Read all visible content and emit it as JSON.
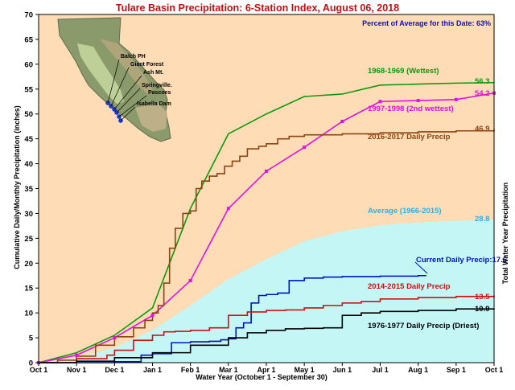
{
  "chart_data": {
    "type": "line",
    "title": "Tulare Basin Precipitation: 6-Station Index, August 06, 2018",
    "subtitle": "Percent of Average for this Date: 63%",
    "xlabel": "Water Year (October 1 - September 30)",
    "ylabel": "Cumulative Daily/Monthly Precipitation (inches)",
    "ylabel_right": "Total Water Year Precipitation",
    "categories": [
      "Oct 1",
      "Nov 1",
      "Dec 1",
      "Jan 1",
      "Feb 1",
      "Mar 1",
      "Apr 1",
      "May 1",
      "Jun 1",
      "Jul 1",
      "Aug 1",
      "Sep 1",
      "Oct 1"
    ],
    "xlim": [
      0,
      12
    ],
    "ylim": [
      0,
      70
    ],
    "yticks": [
      0,
      5,
      10,
      15,
      20,
      25,
      30,
      35,
      40,
      45,
      50,
      55,
      60,
      65,
      70
    ],
    "grid": false,
    "colors": {
      "plot_background": "#FDDCB6",
      "average_fill": "#C4F6F6"
    },
    "map": {
      "stations": [
        "Balch PH",
        "Giant Forest",
        "Ash Mt.",
        "Springville.",
        "Pascoes",
        "Isabella Dam"
      ]
    },
    "series": [
      {
        "name": "Average (1966-2015)",
        "style": "area",
        "color": "#C4F6F6",
        "label_color": "#22B5E8",
        "end_label": "28.8",
        "x": [
          0,
          1,
          2,
          3,
          4,
          5,
          6,
          7,
          8,
          9,
          10,
          11,
          12
        ],
        "values": [
          0,
          0.9,
          3.0,
          6.5,
          11.5,
          16.8,
          20.8,
          24.4,
          26.4,
          27.6,
          28.2,
          28.5,
          28.8
        ]
      },
      {
        "name": "1968-1969 (Wettest)",
        "style": "line",
        "color": "#0B9A0B",
        "label_color": "#0B9A0B",
        "end_label": "56.3",
        "x": [
          0,
          1,
          2,
          3,
          4,
          5,
          6,
          7,
          8,
          9,
          10,
          11,
          12
        ],
        "values": [
          0,
          2.0,
          5.5,
          11.0,
          31.0,
          46.0,
          50.0,
          53.5,
          54.0,
          55.8,
          56.0,
          56.2,
          56.3
        ]
      },
      {
        "name": "1997-1998  (2nd wettest)",
        "style": "line-markers",
        "color": "#E012E0",
        "label_color": "#E012E0",
        "end_label": "54.2",
        "x": [
          0,
          1,
          2,
          3,
          4,
          5,
          6,
          7,
          8,
          9,
          10,
          11,
          12
        ],
        "values": [
          0,
          1.5,
          5.0,
          9.5,
          16.5,
          31.0,
          38.5,
          43.3,
          48.5,
          52.5,
          52.7,
          52.9,
          54.2
        ]
      },
      {
        "name": "2016-2017 Daily Precip",
        "style": "step",
        "color": "#8B4513",
        "label_color": "#8B4513",
        "end_label": "46.9",
        "x": [
          0,
          0.5,
          1.0,
          1.5,
          2.0,
          2.5,
          2.8,
          3.0,
          3.15,
          3.3,
          3.45,
          3.6,
          3.8,
          4.0,
          4.15,
          4.3,
          4.5,
          4.7,
          4.9,
          5.1,
          5.3,
          5.5,
          5.8,
          6.0,
          6.3,
          6.6,
          7.0,
          8.0,
          9.0,
          10.0,
          11.0,
          12.0
        ],
        "values": [
          0,
          0.5,
          1.3,
          3.5,
          5.2,
          7.0,
          8.5,
          10.0,
          11.5,
          16.0,
          23.0,
          27.0,
          30.0,
          30.5,
          35.0,
          36.5,
          37.5,
          38.0,
          39.5,
          40.5,
          41.5,
          43.0,
          43.5,
          44.0,
          45.0,
          45.5,
          45.8,
          46.0,
          46.2,
          46.4,
          46.6,
          46.9
        ]
      },
      {
        "name": "Current Daily Precip:17.6",
        "style": "step",
        "color": "#0010C0",
        "label_color": "#0010C0",
        "end_label": "",
        "x": [
          0,
          1.0,
          2.0,
          2.7,
          3.0,
          3.5,
          4.0,
          4.5,
          4.8,
          5.0,
          5.2,
          5.4,
          5.6,
          5.8,
          6.0,
          6.3,
          6.6,
          7.0,
          7.5,
          8.0,
          9.0,
          10.0,
          10.2
        ],
        "values": [
          0,
          0.0,
          0.2,
          1.5,
          1.8,
          4.0,
          4.2,
          4.3,
          4.6,
          4.8,
          7.0,
          8.0,
          12.0,
          13.5,
          13.7,
          14.0,
          16.5,
          17.0,
          17.2,
          17.3,
          17.4,
          17.5,
          17.6
        ]
      },
      {
        "name": "2014-2015 Daily Precip",
        "style": "step",
        "color": "#D01010",
        "label_color": "#D01010",
        "end_label": "13.5",
        "x": [
          0,
          1.0,
          1.8,
          2.0,
          2.5,
          3.0,
          3.3,
          3.6,
          4.0,
          4.5,
          5.0,
          5.5,
          6.0,
          6.5,
          7.0,
          7.5,
          8.0,
          8.5,
          9.0,
          10.0,
          11.0,
          12.0
        ],
        "values": [
          0,
          0.8,
          1.5,
          2.5,
          4.5,
          5.5,
          6.2,
          6.3,
          6.5,
          7.0,
          9.5,
          10.2,
          10.5,
          10.6,
          11.0,
          11.5,
          12.0,
          12.3,
          12.8,
          13.1,
          13.3,
          13.5
        ]
      },
      {
        "name": "1976-1977 Daily Precip (Driest)",
        "style": "step",
        "color": "#000000",
        "label_color": "#000000",
        "end_label": "10.9",
        "x": [
          0,
          1.0,
          2.0,
          3.0,
          4.0,
          5.0,
          5.5,
          6.0,
          6.5,
          7.0,
          7.5,
          8.0,
          8.5,
          9.0,
          10.0,
          11.0,
          12.0
        ],
        "values": [
          0,
          0.3,
          1.0,
          2.0,
          3.5,
          5.0,
          6.0,
          6.5,
          6.8,
          6.9,
          7.0,
          9.5,
          10.0,
          10.3,
          10.5,
          10.8,
          10.9
        ]
      }
    ]
  }
}
